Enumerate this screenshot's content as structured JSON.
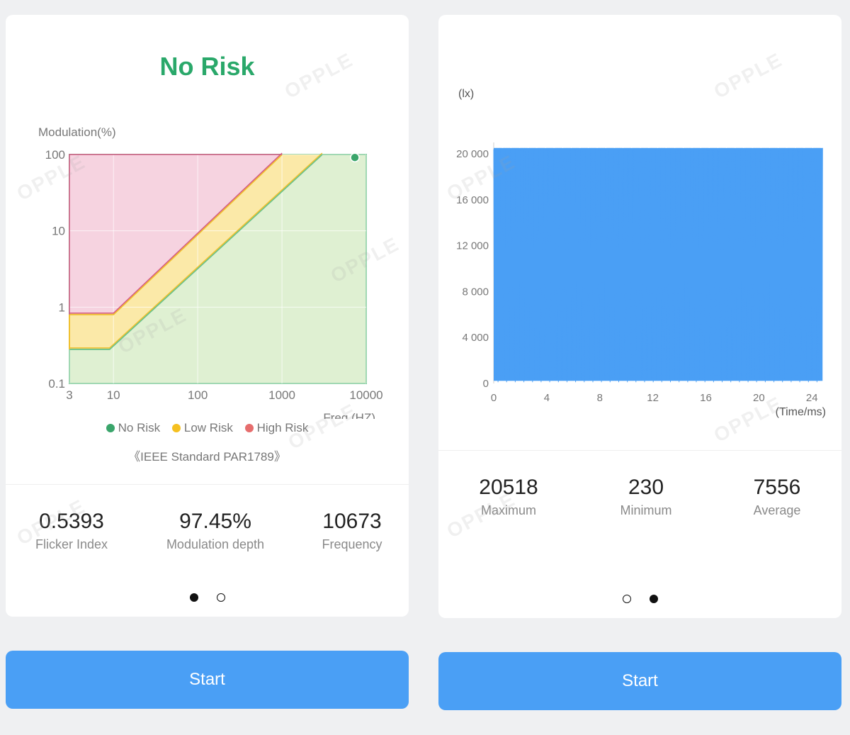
{
  "left_card": {
    "status_title": "No Risk",
    "colors": {
      "no_risk": "#2aa86a",
      "low_risk": "#f5c842",
      "high_risk": "#e87070",
      "accent": "#4a9ff5"
    },
    "legend": [
      {
        "label": "No Risk",
        "color": "#3aa56b"
      },
      {
        "label": "Low Risk",
        "color": "#f5c020"
      },
      {
        "label": "High Risk",
        "color": "#e66d6d"
      }
    ],
    "standard_note": "《IEEE Standard PAR1789》",
    "stats": [
      {
        "value": "0.5393",
        "label": "Flicker Index"
      },
      {
        "value": "97.45%",
        "label": "Modulation depth"
      },
      {
        "value": "10673",
        "label": "Frequency"
      }
    ],
    "pager": {
      "current": 1,
      "total": 2
    }
  },
  "right_card": {
    "stats": [
      {
        "value": "20518",
        "label": "Maximum"
      },
      {
        "value": "230",
        "label": "Minimum"
      },
      {
        "value": "7556",
        "label": "Average"
      }
    ],
    "pager": {
      "current": 2,
      "total": 2
    }
  },
  "buttons": {
    "left_start": "Start",
    "right_start": "Start"
  },
  "watermark_text": "OPPLE",
  "chart_data": [
    {
      "type": "area",
      "title": "",
      "ylabel": "Modulation(%)",
      "xlabel": "Freq.(HZ)",
      "x_scale": "log",
      "y_scale": "log",
      "xlim": [
        3,
        10000
      ],
      "ylim": [
        0.1,
        100
      ],
      "x_ticks": [
        "3",
        "10",
        "100",
        "1000",
        "10000"
      ],
      "y_ticks": [
        "100",
        "10",
        "1",
        "0.1"
      ],
      "zones": [
        {
          "name": "High Risk",
          "color": "#f6d3e0",
          "edge": "#d35a86",
          "boundary": [
            [
              3,
              0.8
            ],
            [
              10,
              0.8
            ],
            [
              1000,
              100
            ]
          ]
        },
        {
          "name": "Low Risk",
          "color": "#fbe9a8",
          "edge": "#f0c030",
          "boundary": [
            [
              3,
              0.28
            ],
            [
              9,
              0.28
            ],
            [
              3000,
              100
            ]
          ]
        },
        {
          "name": "No Risk",
          "color": "#dff0d2",
          "edge": "#6cc28a",
          "boundary": [
            [
              3,
              0.28
            ],
            [
              9,
              0.28
            ],
            [
              3000,
              100
            ]
          ]
        }
      ],
      "marker": {
        "x": 10673,
        "y": 97.45,
        "color": "#3aa56b"
      },
      "grid": true
    },
    {
      "type": "line",
      "title": "",
      "ylabel": "(lx)",
      "xlabel": "(Time/ms)",
      "xlim": [
        0,
        25
      ],
      "ylim": [
        0,
        21000
      ],
      "x_ticks": [
        "0",
        "4",
        "8",
        "12",
        "16",
        "20",
        "24"
      ],
      "y_ticks": [
        "20 000",
        "16 000",
        "12 000",
        "8 000",
        "4 000",
        "0"
      ],
      "series": [
        {
          "name": "",
          "color": "#4a9ff5",
          "min": 230,
          "max": 20518,
          "frequency_hz": 10673
        }
      ],
      "grid": false
    }
  ]
}
